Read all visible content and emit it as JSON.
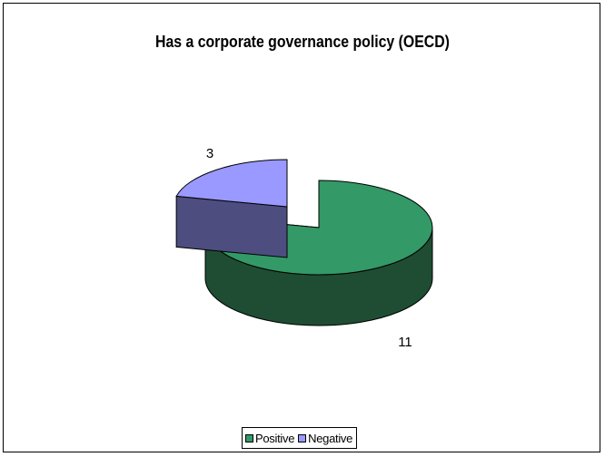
{
  "chart_data": {
    "type": "pie",
    "style": "3d-exploded",
    "title": "Has a corporate governance policy (OECD)",
    "categories": [
      "Positive",
      "Negative"
    ],
    "values": [
      11,
      3
    ],
    "data_labels": [
      "11",
      "3"
    ],
    "colors": {
      "Positive": {
        "top": "#339966",
        "side": "#1e4d33"
      },
      "Negative": {
        "top": "#9999ff",
        "side": "#4d4d7f"
      }
    },
    "legend_position": "bottom"
  }
}
